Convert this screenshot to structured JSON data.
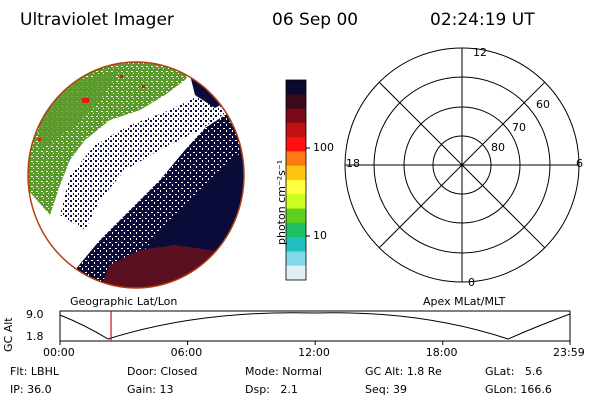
{
  "header": {
    "instrument": "Ultraviolet Imager",
    "date": "06 Sep 00",
    "time": "02:24:19 UT"
  },
  "colorbar": {
    "unit_label": "photon cm⁻²s⁻¹",
    "tick_labels": [
      "100",
      "10"
    ],
    "tick_values": [
      100,
      10
    ],
    "colors": [
      "#0a0a30",
      "#3a0a1a",
      "#7a0a1a",
      "#c01010",
      "#ff1010",
      "#ff7a10",
      "#ffc410",
      "#ffff40",
      "#c8ff20",
      "#60d020",
      "#20c060",
      "#20c0c0",
      "#80d8e8",
      "#e0f0f0"
    ]
  },
  "image_map": {
    "colors": {
      "dark": "#0b0b3a",
      "green": "#5a9a2a",
      "red": "#e01818",
      "dark_red": "#5a1020",
      "rim": "#b04010"
    }
  },
  "polar_grid": {
    "lat_labels": [
      "60",
      "70",
      "80"
    ],
    "mlt_labels": {
      "top": "12",
      "left": "18",
      "right": "6",
      "bottom": "0"
    }
  },
  "altitude_plot": {
    "ylabel": "GC Alt",
    "y_ticks": [
      "9.0",
      "1.8"
    ],
    "left_caption": "Geographic Lat/Lon",
    "right_caption": "Apex MLat/MLT",
    "x_ticks": [
      "00:00",
      "06:00",
      "12:00",
      "18:00",
      "23:59"
    ],
    "marker_time": "02:24",
    "marker_color": "#d01010"
  },
  "info": {
    "row1": [
      {
        "key": "Flt:",
        "value": "LBHL"
      },
      {
        "key": "Door:",
        "value": "Closed"
      },
      {
        "key": "Mode:",
        "value": "Normal"
      },
      {
        "key": "GC Alt:",
        "value": "1.8 Re"
      },
      {
        "key": "GLat:",
        "value": "5.6"
      }
    ],
    "row2": [
      {
        "key": "IP:",
        "value": "36.0"
      },
      {
        "key": "Gain:",
        "value": "13"
      },
      {
        "key": "Dsp:",
        "value": "2.1"
      },
      {
        "key": "Seq:",
        "value": "39"
      },
      {
        "key": "GLon:",
        "value": "166.6"
      }
    ]
  }
}
